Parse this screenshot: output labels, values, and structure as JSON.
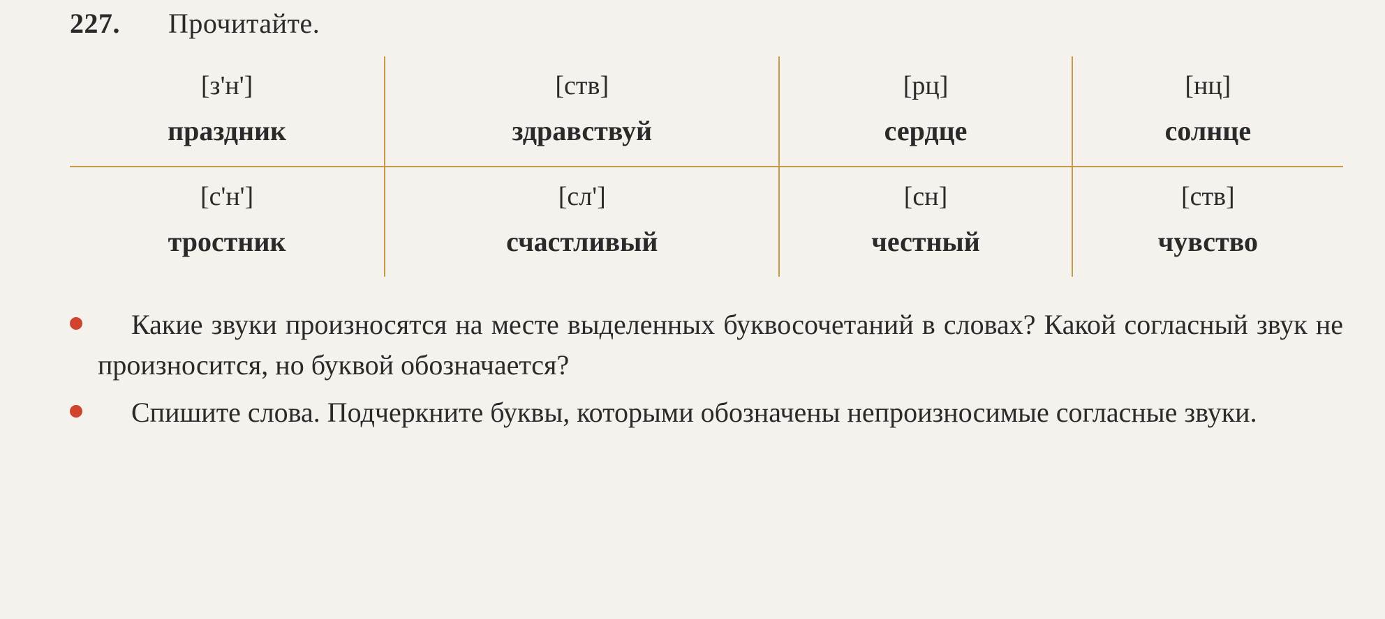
{
  "exercise": {
    "number": "227.",
    "instruction": "Прочитайте."
  },
  "table": {
    "rows": [
      [
        {
          "phon": "[з'н']",
          "pre": "пра",
          "hl": "здн",
          "post": "ик"
        },
        {
          "phon": "[ств]",
          "pre": "здра",
          "hl": "вств",
          "post": "уй"
        },
        {
          "phon": "[рц]",
          "pre": "се",
          "hl": "рдц",
          "post": "е"
        },
        {
          "phon": "[нц]",
          "pre": "со",
          "hl": "лнц",
          "post": "е"
        }
      ],
      [
        {
          "phon": "[с'н']",
          "pre": "тро",
          "hl": "стн",
          "post": "ик"
        },
        {
          "phon": "[сл']",
          "pre": "сча",
          "hl": "стл",
          "post": "ивый"
        },
        {
          "phon": "[сн]",
          "pre": "че",
          "hl": "стн",
          "post": "ый"
        },
        {
          "phon": "[ств]",
          "pre": "чу",
          "hl": "вств",
          "post": "о"
        }
      ]
    ]
  },
  "questions": {
    "q1": "Какие звуки произносятся на месте выделенных буквосочетаний в словах? Какой согласный звук не произносится, но буквой обозначается?",
    "q2": "Спишите слова. Подчеркните буквы, которыми обозначены непроизносимые согласные звуки."
  }
}
